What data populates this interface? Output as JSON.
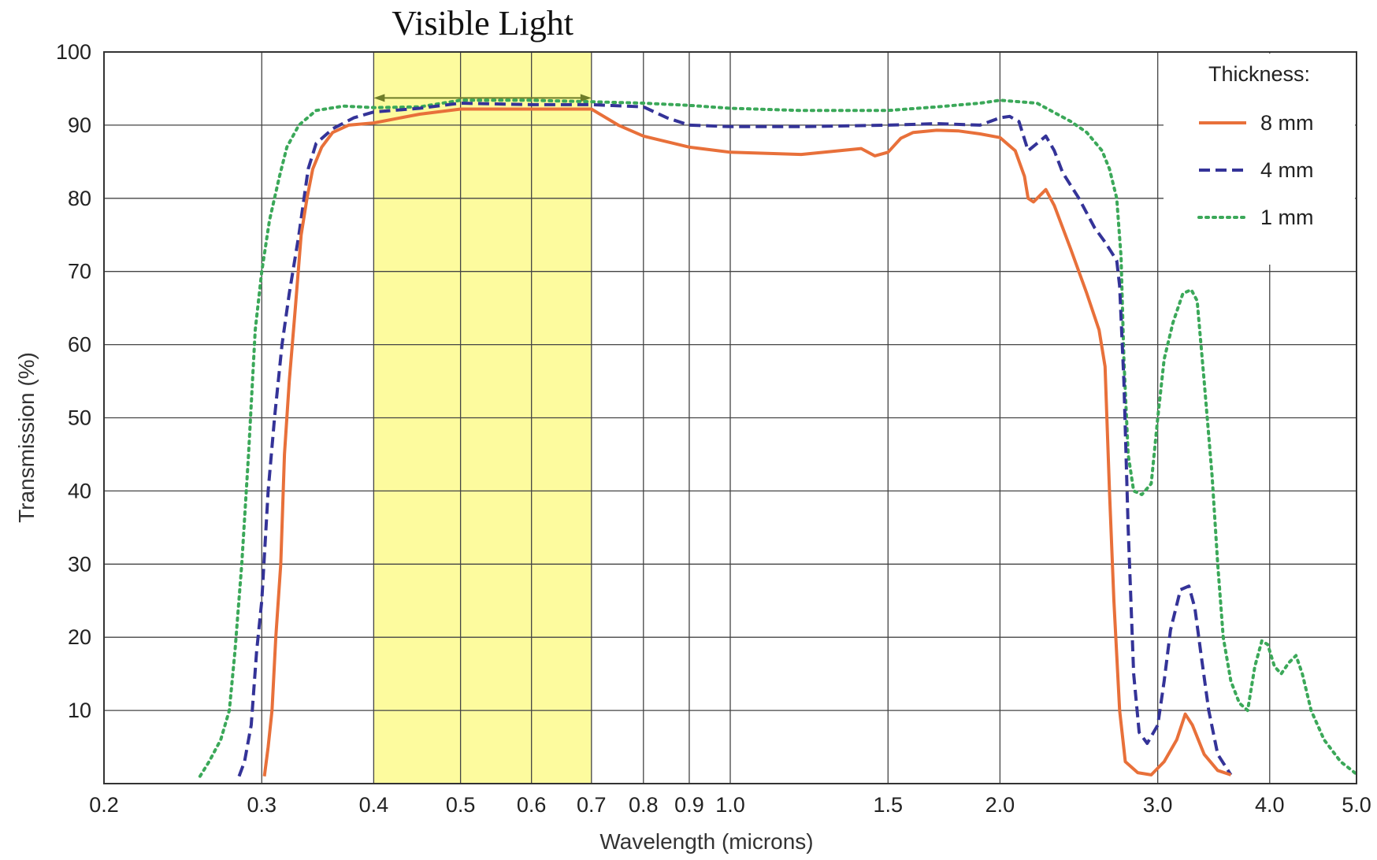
{
  "chart_data": {
    "type": "line",
    "annotation": "Visible Light",
    "band": [
      0.4,
      0.7
    ],
    "xlabel": "Wavelength (microns)",
    "ylabel": "Transmission (%)",
    "xscale": "log",
    "xlim": [
      0.2,
      5.0
    ],
    "ylim": [
      0,
      100
    ],
    "grid": true,
    "legend_title": "Thickness:",
    "legend_position": "top-right",
    "xticks": [
      {
        "v": 0.2,
        "label": "0.2"
      },
      {
        "v": 0.3,
        "label": "0.3"
      },
      {
        "v": 0.4,
        "label": "0.4"
      },
      {
        "v": 0.5,
        "label": "0.5"
      },
      {
        "v": 0.6,
        "label": "0.6"
      },
      {
        "v": 0.7,
        "label": "0.7"
      },
      {
        "v": 0.8,
        "label": "0.8"
      },
      {
        "v": 0.9,
        "label": "0.9"
      },
      {
        "v": 1.0,
        "label": "1.0"
      },
      {
        "v": 1.5,
        "label": "1.5"
      },
      {
        "v": 2.0,
        "label": "2.0"
      },
      {
        "v": 3.0,
        "label": "3.0"
      },
      {
        "v": 4.0,
        "label": "4.0"
      },
      {
        "v": 5.0,
        "label": "5.0"
      }
    ],
    "yticks": [
      {
        "v": 10,
        "label": "10"
      },
      {
        "v": 20,
        "label": "20"
      },
      {
        "v": 30,
        "label": "30"
      },
      {
        "v": 40,
        "label": "40"
      },
      {
        "v": 50,
        "label": "50"
      },
      {
        "v": 60,
        "label": "60"
      },
      {
        "v": 70,
        "label": "70"
      },
      {
        "v": 80,
        "label": "80"
      },
      {
        "v": 90,
        "label": "90"
      },
      {
        "v": 100,
        "label": "100"
      }
    ],
    "series": [
      {
        "name": "8 mm",
        "color": "#e8703a",
        "dash": "solid",
        "points": [
          [
            0.302,
            1
          ],
          [
            0.305,
            5
          ],
          [
            0.308,
            10
          ],
          [
            0.311,
            20
          ],
          [
            0.315,
            30
          ],
          [
            0.318,
            45
          ],
          [
            0.322,
            55
          ],
          [
            0.327,
            65
          ],
          [
            0.332,
            75
          ],
          [
            0.337,
            80
          ],
          [
            0.342,
            84
          ],
          [
            0.35,
            87
          ],
          [
            0.36,
            89
          ],
          [
            0.375,
            90
          ],
          [
            0.4,
            90.3
          ],
          [
            0.45,
            91.5
          ],
          [
            0.5,
            92.2
          ],
          [
            0.6,
            92.2
          ],
          [
            0.7,
            92.2
          ],
          [
            0.75,
            90
          ],
          [
            0.8,
            88.5
          ],
          [
            0.9,
            87
          ],
          [
            1.0,
            86.3
          ],
          [
            1.2,
            86
          ],
          [
            1.4,
            86.8
          ],
          [
            1.45,
            85.8
          ],
          [
            1.5,
            86.3
          ],
          [
            1.55,
            88.2
          ],
          [
            1.6,
            89
          ],
          [
            1.7,
            89.3
          ],
          [
            1.8,
            89.2
          ],
          [
            1.9,
            88.8
          ],
          [
            2.0,
            88.3
          ],
          [
            2.08,
            86.5
          ],
          [
            2.13,
            83
          ],
          [
            2.15,
            80
          ],
          [
            2.18,
            79.5
          ],
          [
            2.25,
            81.2
          ],
          [
            2.3,
            79
          ],
          [
            2.4,
            73
          ],
          [
            2.5,
            67
          ],
          [
            2.58,
            62
          ],
          [
            2.62,
            57
          ],
          [
            2.65,
            40
          ],
          [
            2.68,
            25
          ],
          [
            2.72,
            10
          ],
          [
            2.76,
            3
          ],
          [
            2.85,
            1.5
          ],
          [
            2.95,
            1.2
          ],
          [
            3.05,
            3
          ],
          [
            3.15,
            6
          ],
          [
            3.22,
            9.5
          ],
          [
            3.28,
            8
          ],
          [
            3.38,
            4
          ],
          [
            3.5,
            1.8
          ],
          [
            3.62,
            1.2
          ]
        ]
      },
      {
        "name": "4 mm",
        "color": "#343398",
        "dash": "dashed",
        "points": [
          [
            0.283,
            1
          ],
          [
            0.287,
            3
          ],
          [
            0.292,
            8
          ],
          [
            0.296,
            18
          ],
          [
            0.3,
            25
          ],
          [
            0.305,
            40
          ],
          [
            0.31,
            50
          ],
          [
            0.316,
            60
          ],
          [
            0.322,
            67
          ],
          [
            0.33,
            75
          ],
          [
            0.338,
            84
          ],
          [
            0.345,
            87.5
          ],
          [
            0.36,
            89.5
          ],
          [
            0.38,
            91
          ],
          [
            0.4,
            91.8
          ],
          [
            0.45,
            92.3
          ],
          [
            0.5,
            93
          ],
          [
            0.6,
            92.8
          ],
          [
            0.7,
            92.8
          ],
          [
            0.8,
            92.5
          ],
          [
            0.85,
            91
          ],
          [
            0.9,
            90
          ],
          [
            1.0,
            89.8
          ],
          [
            1.2,
            89.8
          ],
          [
            1.5,
            90
          ],
          [
            1.7,
            90.2
          ],
          [
            1.9,
            90
          ],
          [
            2.0,
            91
          ],
          [
            2.05,
            91.2
          ],
          [
            2.1,
            90.5
          ],
          [
            2.15,
            86.5
          ],
          [
            2.2,
            87.5
          ],
          [
            2.25,
            88.5
          ],
          [
            2.3,
            86.5
          ],
          [
            2.35,
            83.5
          ],
          [
            2.45,
            80
          ],
          [
            2.55,
            76
          ],
          [
            2.62,
            74
          ],
          [
            2.7,
            71.5
          ],
          [
            2.72,
            68
          ],
          [
            2.75,
            55
          ],
          [
            2.78,
            35
          ],
          [
            2.82,
            15
          ],
          [
            2.86,
            7
          ],
          [
            2.92,
            5.5
          ],
          [
            3.0,
            8
          ],
          [
            3.05,
            14
          ],
          [
            3.1,
            21
          ],
          [
            3.18,
            26.5
          ],
          [
            3.25,
            27
          ],
          [
            3.3,
            24
          ],
          [
            3.35,
            18
          ],
          [
            3.42,
            10
          ],
          [
            3.5,
            4
          ],
          [
            3.62,
            1.2
          ]
        ]
      },
      {
        "name": "1 mm",
        "color": "#3ba859",
        "dash": "dotted",
        "points": [
          [
            0.256,
            1
          ],
          [
            0.262,
            3
          ],
          [
            0.27,
            6
          ],
          [
            0.276,
            10
          ],
          [
            0.28,
            18
          ],
          [
            0.285,
            30
          ],
          [
            0.29,
            45
          ],
          [
            0.295,
            62
          ],
          [
            0.3,
            70
          ],
          [
            0.306,
            77
          ],
          [
            0.314,
            83
          ],
          [
            0.32,
            87
          ],
          [
            0.33,
            90
          ],
          [
            0.345,
            92
          ],
          [
            0.37,
            92.6
          ],
          [
            0.4,
            92.4
          ],
          [
            0.45,
            92.5
          ],
          [
            0.5,
            93.4
          ],
          [
            0.6,
            93.4
          ],
          [
            0.7,
            93.2
          ],
          [
            0.8,
            93
          ],
          [
            0.9,
            92.7
          ],
          [
            1.0,
            92.3
          ],
          [
            1.2,
            92
          ],
          [
            1.5,
            92
          ],
          [
            1.7,
            92.5
          ],
          [
            1.9,
            93
          ],
          [
            2.0,
            93.4
          ],
          [
            2.2,
            93
          ],
          [
            2.4,
            90.5
          ],
          [
            2.5,
            89
          ],
          [
            2.6,
            86.5
          ],
          [
            2.65,
            84
          ],
          [
            2.7,
            80
          ],
          [
            2.73,
            72
          ],
          [
            2.75,
            58
          ],
          [
            2.78,
            45
          ],
          [
            2.82,
            40
          ],
          [
            2.88,
            39.5
          ],
          [
            2.95,
            41
          ],
          [
            3.0,
            50
          ],
          [
            3.05,
            58
          ],
          [
            3.12,
            63
          ],
          [
            3.2,
            67
          ],
          [
            3.27,
            67.5
          ],
          [
            3.32,
            66
          ],
          [
            3.38,
            55
          ],
          [
            3.45,
            42
          ],
          [
            3.5,
            30
          ],
          [
            3.55,
            20
          ],
          [
            3.62,
            14
          ],
          [
            3.7,
            11
          ],
          [
            3.78,
            10
          ],
          [
            3.85,
            16
          ],
          [
            3.92,
            19.5
          ],
          [
            3.98,
            19
          ],
          [
            4.05,
            16
          ],
          [
            4.12,
            15
          ],
          [
            4.2,
            16.5
          ],
          [
            4.28,
            17.5
          ],
          [
            4.35,
            15
          ],
          [
            4.45,
            10
          ],
          [
            4.6,
            6
          ],
          [
            4.8,
            3
          ],
          [
            5.0,
            1.3
          ]
        ]
      }
    ]
  }
}
